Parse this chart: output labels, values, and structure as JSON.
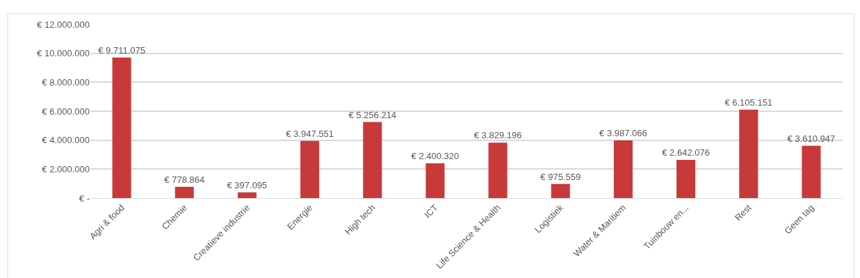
{
  "chart_data": {
    "type": "bar",
    "categories": [
      "Agri & food",
      "Chemie",
      "Creatieve industrie",
      "Energie",
      "High tech",
      "ICT",
      "Life Science & Health",
      "Logistiek",
      "Water & Maritiem",
      "Tuinbouw en...",
      "Rest",
      "Geen tag"
    ],
    "values": [
      9711075,
      778864,
      397095,
      3947551,
      5256214,
      2400320,
      3829196,
      975559,
      3987066,
      2642076,
      6105151,
      3610947
    ],
    "value_labels": [
      "€ 9.711.075",
      "€ 778.864",
      "€ 397.095",
      "€ 3.947.551",
      "€ 5.256.214",
      "€ 2.400.320",
      "€ 3.829.196",
      "€ 975.559",
      "€ 3.987.066",
      "€ 2.642.076",
      "€ 6.105.151",
      "€ 3.610.947"
    ],
    "color": "#c83a3a",
    "ylim": [
      0,
      12000000
    ],
    "yticks": [
      {
        "value": 0,
        "label": "€ -"
      },
      {
        "value": 2000000,
        "label": "€ 2.000.000"
      },
      {
        "value": 4000000,
        "label": "€ 4.000.000"
      },
      {
        "value": 6000000,
        "label": "€ 6.000.000"
      },
      {
        "value": 8000000,
        "label": "€ 8.000.000"
      },
      {
        "value": 10000000,
        "label": "€ 10.000.000"
      },
      {
        "value": 12000000,
        "label": "€ 12.000.000"
      }
    ],
    "grid": "y",
    "legend": false
  }
}
